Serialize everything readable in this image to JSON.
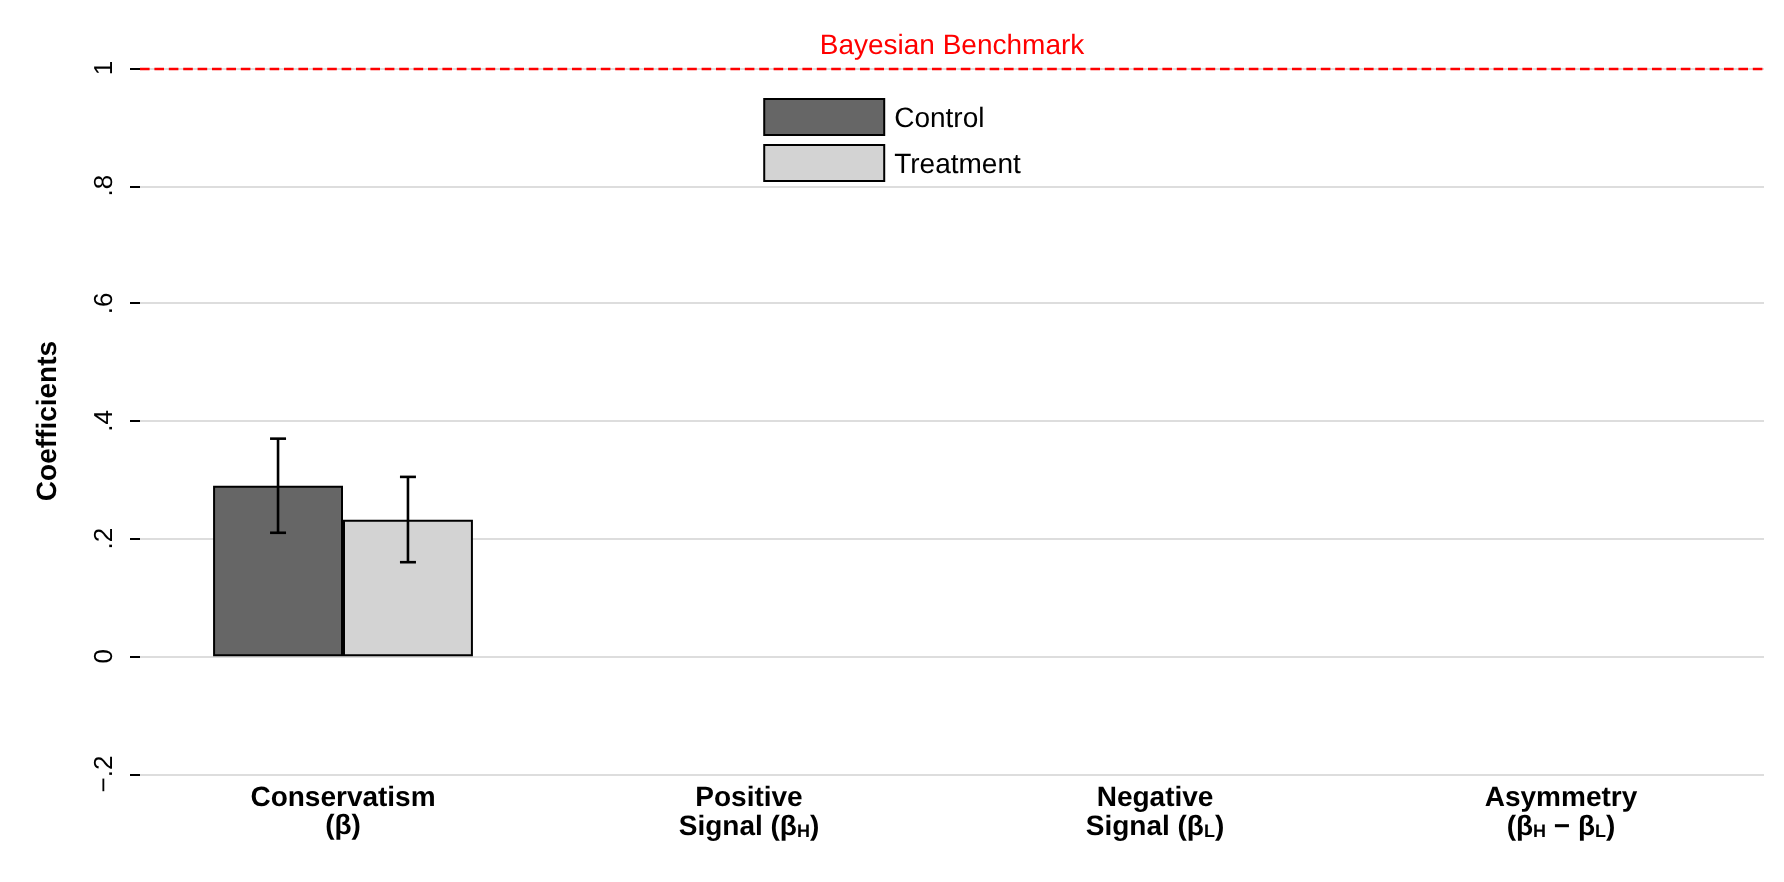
{
  "chart_data": {
    "type": "bar",
    "ylabel": "Coefficients",
    "categories": [
      "Conservatism\n(β)",
      "Positive\nSignal (β$_{H}$)",
      "Negative\nSignal (β$_{L}$)",
      "Asymmetry\n(β$_{H}$ − β$_{L}$)"
    ],
    "series": [
      {
        "name": "Control",
        "color": "#666666",
        "values": [
          0.29,
          null,
          null,
          null
        ],
        "errors": [
          [
            0.21,
            0.37
          ],
          null,
          null,
          null
        ]
      },
      {
        "name": "Treatment",
        "color": "#d3d3d3",
        "values": [
          0.232,
          null,
          null,
          null
        ],
        "errors": [
          [
            0.16,
            0.305
          ],
          null,
          null,
          null
        ]
      }
    ],
    "ylim": [
      -0.2,
      1
    ],
    "yticks": [
      {
        "value": -0.2,
        "label": "−.2"
      },
      0,
      {
        "value": 0.2,
        "label": ".2"
      },
      {
        "value": 0.4,
        "label": ".4"
      },
      {
        "value": 0.6,
        "label": ".6"
      },
      {
        "value": 0.8,
        "label": ".8"
      },
      1
    ],
    "ref_lines": [
      {
        "axis": "y",
        "value": 1,
        "label": "Bayesian Benchmark",
        "color": "#ff0000",
        "line_style": "dashed"
      }
    ],
    "grid": "y",
    "legend": "top"
  }
}
